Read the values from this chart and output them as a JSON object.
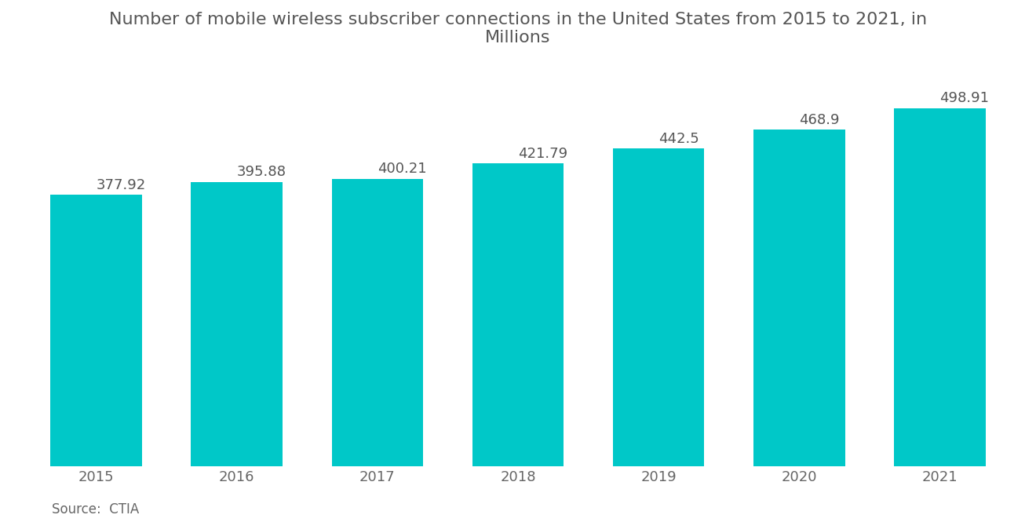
{
  "title": "Number of mobile wireless subscriber connections in the United States from 2015 to 2021, in\nMillions",
  "categories": [
    "2015",
    "2016",
    "2017",
    "2018",
    "2019",
    "2020",
    "2021"
  ],
  "values": [
    377.92,
    395.88,
    400.21,
    421.79,
    442.5,
    468.9,
    498.91
  ],
  "bar_color": "#00C8C8",
  "background_color": "#ffffff",
  "title_color": "#555555",
  "label_color": "#555555",
  "tick_color": "#666666",
  "source_text": "Source:  CTIA",
  "title_fontsize": 16,
  "label_fontsize": 13,
  "tick_fontsize": 13,
  "source_fontsize": 12,
  "ylim": [
    0,
    560
  ],
  "bar_width": 0.65
}
